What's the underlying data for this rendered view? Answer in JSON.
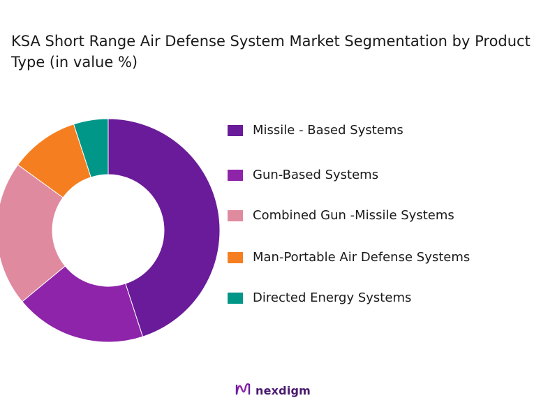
{
  "title": "KSA Short Range Air Defense System Market Segmentation by Product Type (in value %)",
  "chart_data": {
    "type": "pie",
    "donut": true,
    "legend_position": "right",
    "series": [
      {
        "name": "Missile - Based Systems",
        "value": 45,
        "color": "#6a1b9a"
      },
      {
        "name": "Gun-Based Systems",
        "value": 19,
        "color": "#8e24aa"
      },
      {
        "name": "Combined Gun -Missile Systems",
        "value": 21,
        "color": "#e08aa0"
      },
      {
        "name": "Man-Portable Air Defense Systems",
        "value": 10,
        "color": "#f57f20"
      },
      {
        "name": "Directed Energy Systems",
        "value": 5,
        "color": "#009688"
      }
    ]
  },
  "legend": [
    {
      "label": "Missile - Based Systems",
      "color": "#6a1b9a"
    },
    {
      "label": "Gun-Based Systems",
      "color": "#8e24aa"
    },
    {
      "label": "Combined Gun -Missile Systems",
      "color": "#e08aa0"
    },
    {
      "label": " Man-Portable Air Defense Systems",
      "color": "#f57f20"
    },
    {
      "label": " Directed Energy Systems",
      "color": "#009688"
    }
  ],
  "brand": {
    "name": "nexdigm",
    "color": "#4a1a6e",
    "icon": "nexdigm-logo-icon"
  }
}
